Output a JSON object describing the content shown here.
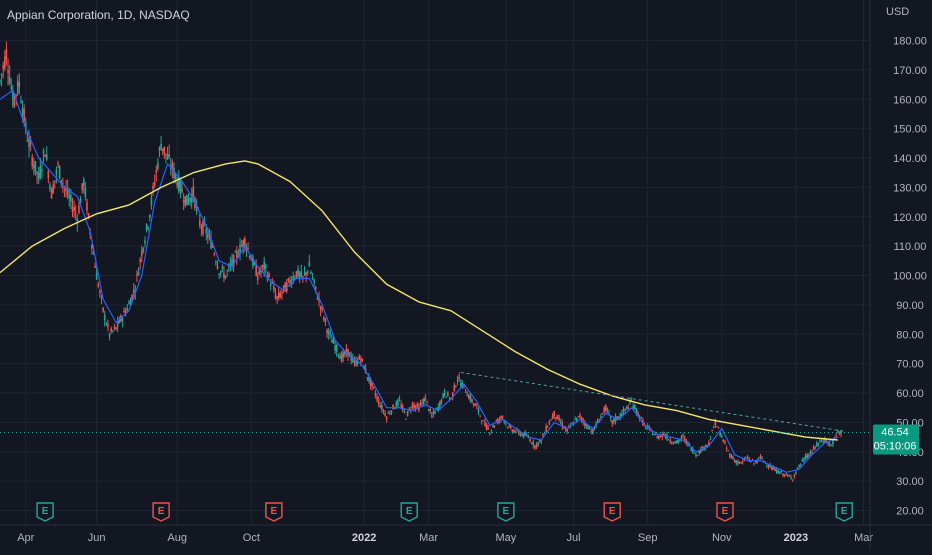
{
  "header": {
    "title": "Appian Corporation, 1D, NASDAQ",
    "currency": "USD"
  },
  "colors": {
    "background": "#131722",
    "grid": "#1f2432",
    "axis_text": "#b2b5be",
    "up": "#26a69a",
    "down": "#ef5350",
    "ma_short": "#2962ff",
    "ma_long": "#f5e663",
    "trendline": "#4aa3a3",
    "last_price_badge": "#089981"
  },
  "price_badge": {
    "price": "46.54",
    "countdown": "05:10:06"
  },
  "chart_data": {
    "type": "candlestick",
    "title": "Appian Corporation, 1D, NASDAQ",
    "xlabel": "",
    "ylabel": "USD",
    "ylim": [
      17,
      188
    ],
    "y_ticks": [
      "20.00",
      "30.00",
      "40.00",
      "50.00",
      "60.00",
      "70.00",
      "80.00",
      "90.00",
      "100.00",
      "110.00",
      "120.00",
      "130.00",
      "140.00",
      "150.00",
      "160.00",
      "170.00",
      "180.00"
    ],
    "x_ticks": [
      "Apr",
      "Jun",
      "Aug",
      "Oct",
      "2022",
      "Mar",
      "May",
      "Jul",
      "Sep",
      "Nov",
      "2023",
      "Mar"
    ],
    "bold_x_ticks": [
      "2022",
      "2023"
    ],
    "price_path": [
      [
        0,
        166
      ],
      [
        2,
        176
      ],
      [
        4,
        160
      ],
      [
        6,
        165
      ],
      [
        8,
        150
      ],
      [
        10,
        140
      ],
      [
        12,
        133
      ],
      [
        14,
        143
      ],
      [
        16,
        128
      ],
      [
        18,
        137
      ],
      [
        20,
        130
      ],
      [
        22,
        125
      ],
      [
        24,
        120
      ],
      [
        26,
        132
      ],
      [
        28,
        115
      ],
      [
        30,
        100
      ],
      [
        32,
        88
      ],
      [
        34,
        80
      ],
      [
        36,
        82
      ],
      [
        38,
        86
      ],
      [
        40,
        90
      ],
      [
        42,
        96
      ],
      [
        44,
        108
      ],
      [
        46,
        118
      ],
      [
        48,
        132
      ],
      [
        50,
        145
      ],
      [
        52,
        140
      ],
      [
        54,
        135
      ],
      [
        56,
        130
      ],
      [
        58,
        125
      ],
      [
        60,
        128
      ],
      [
        62,
        118
      ],
      [
        64,
        115
      ],
      [
        66,
        110
      ],
      [
        68,
        102
      ],
      [
        70,
        100
      ],
      [
        72,
        104
      ],
      [
        74,
        108
      ],
      [
        76,
        112
      ],
      [
        78,
        106
      ],
      [
        80,
        100
      ],
      [
        82,
        103
      ],
      [
        84,
        98
      ],
      [
        86,
        92
      ],
      [
        88,
        95
      ],
      [
        90,
        98
      ],
      [
        92,
        101
      ],
      [
        94,
        99
      ],
      [
        96,
        103
      ],
      [
        98,
        95
      ],
      [
        100,
        88
      ],
      [
        102,
        80
      ],
      [
        104,
        76
      ],
      [
        106,
        72
      ],
      [
        108,
        74
      ],
      [
        110,
        70
      ],
      [
        112,
        72
      ],
      [
        114,
        66
      ],
      [
        116,
        61
      ],
      [
        118,
        56
      ],
      [
        120,
        52
      ],
      [
        122,
        55
      ],
      [
        124,
        57
      ],
      [
        126,
        52
      ],
      [
        128,
        56
      ],
      [
        130,
        55
      ],
      [
        132,
        58
      ],
      [
        134,
        52
      ],
      [
        136,
        55
      ],
      [
        138,
        60
      ],
      [
        140,
        58
      ],
      [
        142,
        65
      ],
      [
        144,
        62
      ],
      [
        146,
        58
      ],
      [
        148,
        55
      ],
      [
        150,
        50
      ],
      [
        152,
        47
      ],
      [
        154,
        50
      ],
      [
        156,
        52
      ],
      [
        158,
        48
      ],
      [
        160,
        47
      ],
      [
        162,
        46
      ],
      [
        164,
        45
      ],
      [
        166,
        42
      ],
      [
        168,
        44
      ],
      [
        170,
        49
      ],
      [
        172,
        53
      ],
      [
        174,
        50
      ],
      [
        176,
        47
      ],
      [
        178,
        50
      ],
      [
        180,
        52
      ],
      [
        182,
        49
      ],
      [
        184,
        47
      ],
      [
        186,
        51
      ],
      [
        188,
        55
      ],
      [
        190,
        50
      ],
      [
        192,
        52
      ],
      [
        194,
        54
      ],
      [
        196,
        57
      ],
      [
        198,
        53
      ],
      [
        200,
        49
      ],
      [
        202,
        47
      ],
      [
        204,
        45
      ],
      [
        206,
        46
      ],
      [
        208,
        44
      ],
      [
        210,
        43
      ],
      [
        212,
        45
      ],
      [
        214,
        42
      ],
      [
        216,
        39
      ],
      [
        218,
        41
      ],
      [
        220,
        43
      ],
      [
        222,
        50
      ],
      [
        224,
        45
      ],
      [
        226,
        40
      ],
      [
        228,
        37
      ],
      [
        230,
        36
      ],
      [
        232,
        38
      ],
      [
        234,
        36
      ],
      [
        236,
        38
      ],
      [
        238,
        36
      ],
      [
        240,
        34
      ],
      [
        242,
        33
      ],
      [
        244,
        32
      ],
      [
        246,
        31
      ],
      [
        248,
        35
      ],
      [
        250,
        38
      ],
      [
        252,
        40
      ],
      [
        254,
        43
      ],
      [
        256,
        44
      ],
      [
        258,
        42
      ],
      [
        260,
        46.54
      ]
    ],
    "series": [
      {
        "name": "",
        "kind": "short_ma",
        "points": [
          [
            0,
            160
          ],
          [
            4,
            163
          ],
          [
            8,
            150
          ],
          [
            12,
            140
          ],
          [
            16,
            135
          ],
          [
            20,
            130
          ],
          [
            24,
            127
          ],
          [
            28,
            115
          ],
          [
            32,
            92
          ],
          [
            36,
            84
          ],
          [
            40,
            88
          ],
          [
            44,
            100
          ],
          [
            48,
            125
          ],
          [
            52,
            138
          ],
          [
            56,
            133
          ],
          [
            60,
            126
          ],
          [
            64,
            117
          ],
          [
            68,
            105
          ],
          [
            72,
            103
          ],
          [
            76,
            110
          ],
          [
            80,
            103
          ],
          [
            84,
            98
          ],
          [
            88,
            95
          ],
          [
            92,
            99
          ],
          [
            96,
            99
          ],
          [
            100,
            90
          ],
          [
            104,
            78
          ],
          [
            108,
            73
          ],
          [
            112,
            70
          ],
          [
            116,
            63
          ],
          [
            120,
            55
          ],
          [
            124,
            55
          ],
          [
            128,
            54
          ],
          [
            132,
            56
          ],
          [
            136,
            54
          ],
          [
            140,
            58
          ],
          [
            144,
            63
          ],
          [
            148,
            57
          ],
          [
            152,
            49
          ],
          [
            156,
            51
          ],
          [
            160,
            48
          ],
          [
            164,
            45
          ],
          [
            168,
            44
          ],
          [
            172,
            50
          ],
          [
            176,
            48
          ],
          [
            180,
            51
          ],
          [
            184,
            48
          ],
          [
            188,
            53
          ],
          [
            192,
            51
          ],
          [
            196,
            55
          ],
          [
            200,
            49
          ],
          [
            204,
            46
          ],
          [
            208,
            45
          ],
          [
            212,
            44
          ],
          [
            216,
            40
          ],
          [
            220,
            42
          ],
          [
            224,
            48
          ],
          [
            228,
            39
          ],
          [
            232,
            37
          ],
          [
            236,
            37
          ],
          [
            240,
            35
          ],
          [
            244,
            33
          ],
          [
            248,
            34
          ],
          [
            252,
            39
          ],
          [
            256,
            43
          ],
          [
            260,
            45
          ]
        ]
      },
      {
        "name": "",
        "kind": "long_ma",
        "points": [
          [
            0,
            101
          ],
          [
            10,
            110
          ],
          [
            20,
            116
          ],
          [
            30,
            121
          ],
          [
            40,
            124
          ],
          [
            50,
            130
          ],
          [
            60,
            135
          ],
          [
            70,
            138
          ],
          [
            76,
            139
          ],
          [
            80,
            138
          ],
          [
            90,
            132
          ],
          [
            100,
            122
          ],
          [
            110,
            108
          ],
          [
            120,
            97
          ],
          [
            130,
            91
          ],
          [
            140,
            88
          ],
          [
            150,
            81
          ],
          [
            160,
            74
          ],
          [
            170,
            68
          ],
          [
            180,
            63
          ],
          [
            190,
            59
          ],
          [
            200,
            56
          ],
          [
            210,
            54
          ],
          [
            220,
            51
          ],
          [
            230,
            49
          ],
          [
            240,
            47
          ],
          [
            250,
            45
          ],
          [
            260,
            44
          ]
        ]
      }
    ],
    "trendline": {
      "from": [
        143,
        67
      ],
      "to": [
        262,
        47
      ]
    },
    "earnings_markers": [
      {
        "x": 14,
        "label": "E",
        "color": "#26a69a"
      },
      {
        "x": 50,
        "label": "E",
        "color": "#ef5350"
      },
      {
        "x": 85,
        "label": "E",
        "color": "#ef5350"
      },
      {
        "x": 127,
        "label": "E",
        "color": "#26a69a"
      },
      {
        "x": 157,
        "label": "E",
        "color": "#26a69a"
      },
      {
        "x": 190,
        "label": "E",
        "color": "#ef5350"
      },
      {
        "x": 225,
        "label": "E",
        "color": "#ef5350"
      },
      {
        "x": 262,
        "label": "E",
        "color": "#26a69a"
      }
    ],
    "x_tick_positions": [
      8,
      30,
      55,
      78,
      113,
      133,
      157,
      178,
      201,
      224,
      247,
      268
    ],
    "last_price": 46.54
  }
}
